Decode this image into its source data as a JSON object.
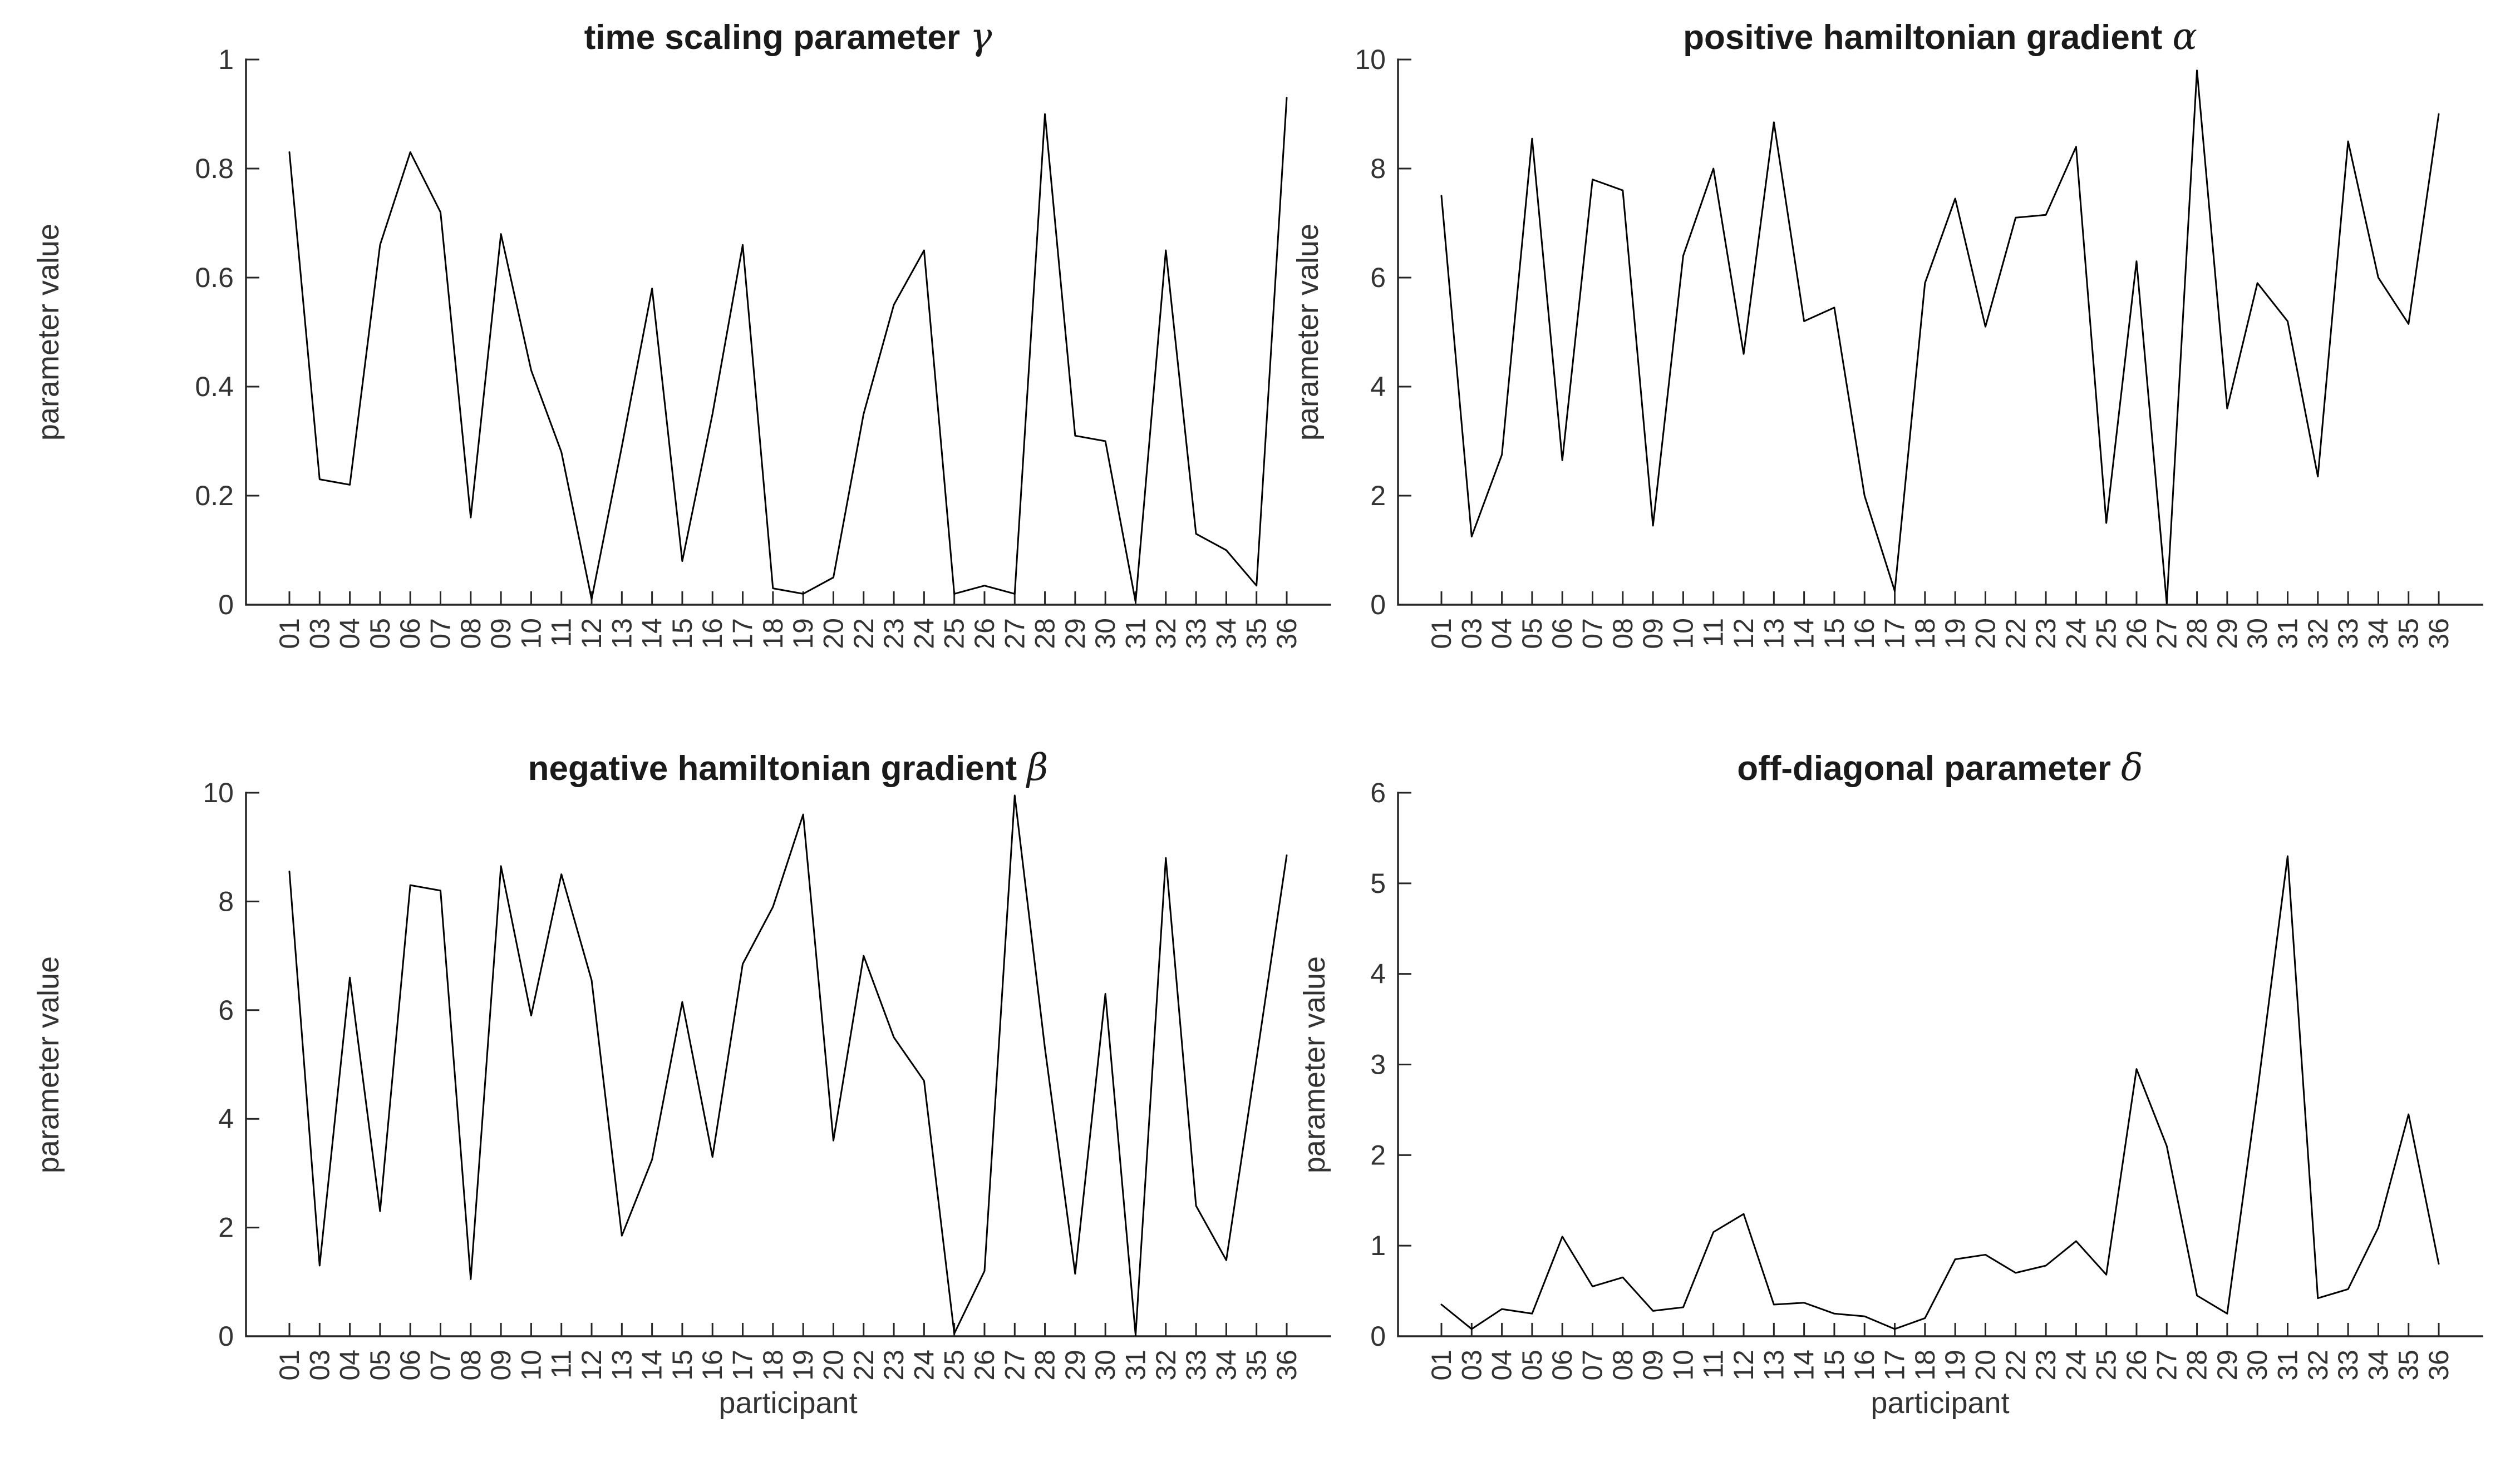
{
  "figure": {
    "background": "#ffffff",
    "axis_color": "#262626",
    "tick_label_color": "#333333",
    "line_color": "#000000"
  },
  "chart_data": {
    "type": "line",
    "grid": false,
    "legend": null,
    "xlabel": "participant",
    "ylabel": "parameter value",
    "categories": [
      "01",
      "03",
      "04",
      "05",
      "06",
      "07",
      "08",
      "09",
      "10",
      "11",
      "12",
      "13",
      "14",
      "15",
      "16",
      "17",
      "18",
      "19",
      "20",
      "22",
      "23",
      "24",
      "25",
      "26",
      "27",
      "28",
      "29",
      "30",
      "31",
      "32",
      "33",
      "34",
      "35",
      "36"
    ],
    "charts": [
      {
        "id": "gamma",
        "title_text": "time scaling parameter",
        "title_symbol": "γ",
        "ylim": [
          0,
          1
        ],
        "yticks": [
          0,
          0.2,
          0.4,
          0.6,
          0.8,
          1
        ],
        "ytick_labels": [
          "0",
          "0.2",
          "0.4",
          "0.6",
          "0.8",
          "1"
        ],
        "values": [
          0.83,
          0.23,
          0.22,
          0.66,
          0.83,
          0.72,
          0.16,
          0.68,
          0.43,
          0.28,
          0.01,
          0.29,
          0.58,
          0.08,
          0.35,
          0.66,
          0.03,
          0.02,
          0.05,
          0.35,
          0.55,
          0.65,
          0.02,
          0.035,
          0.02,
          0.9,
          0.31,
          0.3,
          0.005,
          0.65,
          0.13,
          0.1,
          0.035,
          0.93
        ]
      },
      {
        "id": "alpha",
        "title_text": "positive hamiltonian gradient",
        "title_symbol": "α",
        "ylim": [
          0,
          10
        ],
        "yticks": [
          0,
          2,
          4,
          6,
          8,
          10
        ],
        "ytick_labels": [
          "0",
          "2",
          "4",
          "6",
          "8",
          "10"
        ],
        "values": [
          7.5,
          1.25,
          2.75,
          8.55,
          2.65,
          7.8,
          7.6,
          1.45,
          6.4,
          8.0,
          4.6,
          8.85,
          5.2,
          5.45,
          2.0,
          0.25,
          5.9,
          7.45,
          5.1,
          7.1,
          7.15,
          8.4,
          1.5,
          6.3,
          0.02,
          9.8,
          3.6,
          5.9,
          5.2,
          2.35,
          8.5,
          6.0,
          5.15,
          9.0
        ]
      },
      {
        "id": "beta",
        "title_text": "negative hamiltonian gradient",
        "title_symbol": "β",
        "ylim": [
          0,
          10
        ],
        "yticks": [
          0,
          2,
          4,
          6,
          8,
          10
        ],
        "ytick_labels": [
          "0",
          "2",
          "4",
          "6",
          "8",
          "10"
        ],
        "values": [
          8.55,
          1.3,
          6.6,
          2.3,
          8.3,
          8.2,
          1.05,
          8.65,
          5.9,
          8.5,
          6.55,
          1.85,
          3.25,
          6.15,
          3.3,
          6.85,
          7.9,
          9.6,
          3.6,
          7.0,
          5.5,
          4.7,
          0.05,
          1.2,
          9.95,
          5.3,
          1.15,
          6.3,
          0.02,
          8.8,
          2.4,
          1.4,
          5.1,
          8.85
        ]
      },
      {
        "id": "delta",
        "title_text": "off-diagonal parameter",
        "title_symbol": "δ",
        "ylim": [
          0,
          6
        ],
        "yticks": [
          0,
          1,
          2,
          3,
          4,
          5,
          6
        ],
        "ytick_labels": [
          "0",
          "1",
          "2",
          "3",
          "4",
          "5",
          "6"
        ],
        "values": [
          0.35,
          0.08,
          0.3,
          0.25,
          1.1,
          0.55,
          0.65,
          0.28,
          0.32,
          1.15,
          1.35,
          0.35,
          0.37,
          0.25,
          0.22,
          0.08,
          0.2,
          0.85,
          0.9,
          0.7,
          0.78,
          1.05,
          0.68,
          2.95,
          2.1,
          0.45,
          0.25,
          2.7,
          5.3,
          0.42,
          0.52,
          1.2,
          2.45,
          0.8
        ]
      }
    ]
  }
}
